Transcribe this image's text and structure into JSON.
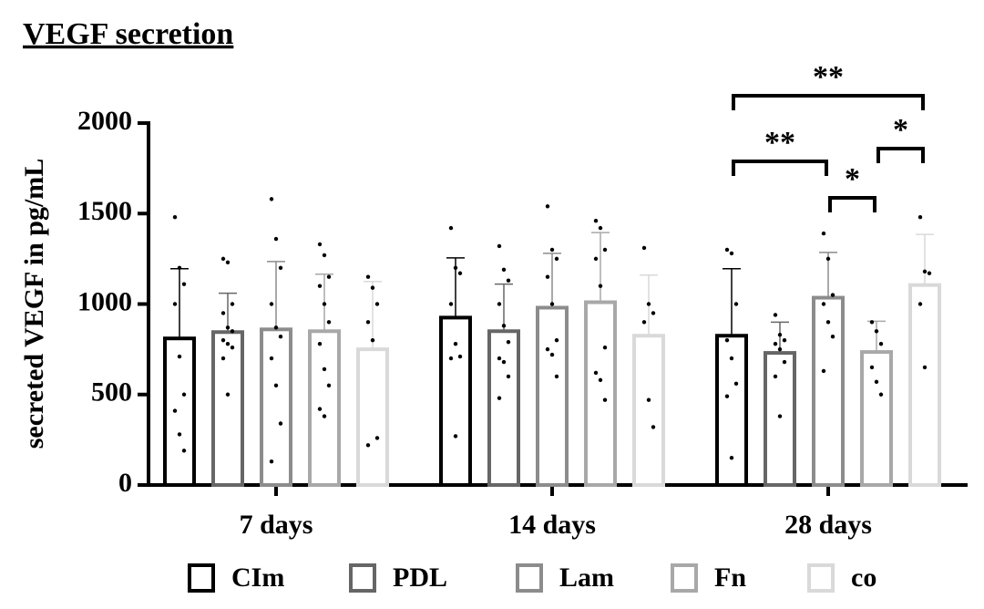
{
  "chart_data": {
    "type": "bar",
    "title": "VEGF secretion",
    "y_label": "secreted VEGF in pg/mL",
    "categories": [
      "7 days",
      "14 days",
      "28 days"
    ],
    "ylim": [
      0,
      2000
    ],
    "yticks": [
      0,
      500,
      1000,
      1500,
      2000
    ],
    "series": [
      {
        "name": "CIm",
        "color": "#000000",
        "values": [
          810,
          925,
          825
        ],
        "errors": [
          385,
          330,
          370
        ],
        "points": [
          [
            1480,
            1200,
            1110,
            1000,
            710,
            500,
            410,
            280,
            190
          ],
          [
            1420,
            1200,
            1170,
            1000,
            780,
            710,
            700,
            270
          ],
          [
            1300,
            1280,
            1000,
            800,
            700,
            560,
            490,
            150
          ]
        ]
      },
      {
        "name": "PDL",
        "color": "#666666",
        "values": [
          845,
          850,
          730
        ],
        "errors": [
          215,
          260,
          170
        ],
        "points": [
          [
            1250,
            1230,
            1000,
            950,
            870,
            850,
            800,
            780,
            760,
            700,
            500
          ],
          [
            1320,
            1190,
            1130,
            1000,
            880,
            790,
            700,
            680,
            600,
            480
          ],
          [
            940,
            830,
            800,
            780,
            750,
            680,
            600,
            380
          ]
        ]
      },
      {
        "name": "Lam",
        "color": "#8c8c8c",
        "values": [
          860,
          980,
          1035
        ],
        "errors": [
          375,
          300,
          250
        ],
        "points": [
          [
            1580,
            1360,
            1200,
            1000,
            870,
            820,
            700,
            550,
            340,
            130
          ],
          [
            1540,
            1300,
            1250,
            1150,
            1000,
            800,
            750,
            720,
            600
          ],
          [
            1390,
            1250,
            1050,
            1000,
            900,
            820,
            630
          ]
        ]
      },
      {
        "name": "Fn",
        "color": "#a8a8a8",
        "values": [
          850,
          1010,
          735
        ],
        "errors": [
          315,
          385,
          170
        ],
        "points": [
          [
            1330,
            1270,
            1150,
            1100,
            1000,
            900,
            780,
            640,
            550,
            420,
            380
          ],
          [
            1460,
            1420,
            1300,
            1250,
            1100,
            760,
            620,
            580,
            470
          ],
          [
            900,
            850,
            780,
            650,
            570,
            500
          ]
        ]
      },
      {
        "name": "co",
        "color": "#d9d9d9",
        "values": [
          750,
          825,
          1105
        ],
        "errors": [
          375,
          335,
          280
        ],
        "points": [
          [
            1150,
            1090,
            1000,
            900,
            800,
            260,
            220
          ],
          [
            1310,
            1000,
            950,
            900,
            470,
            320
          ],
          [
            1480,
            1180,
            1170,
            1000,
            650
          ]
        ]
      }
    ],
    "significance": [
      {
        "category": 2,
        "from": 0,
        "to": 4,
        "label": "**"
      },
      {
        "category": 2,
        "from": 0,
        "to": 2,
        "label": "**"
      },
      {
        "category": 2,
        "from": 2,
        "to": 3,
        "label": "*"
      },
      {
        "category": 2,
        "from": 3,
        "to": 4,
        "label": "*"
      }
    ]
  }
}
